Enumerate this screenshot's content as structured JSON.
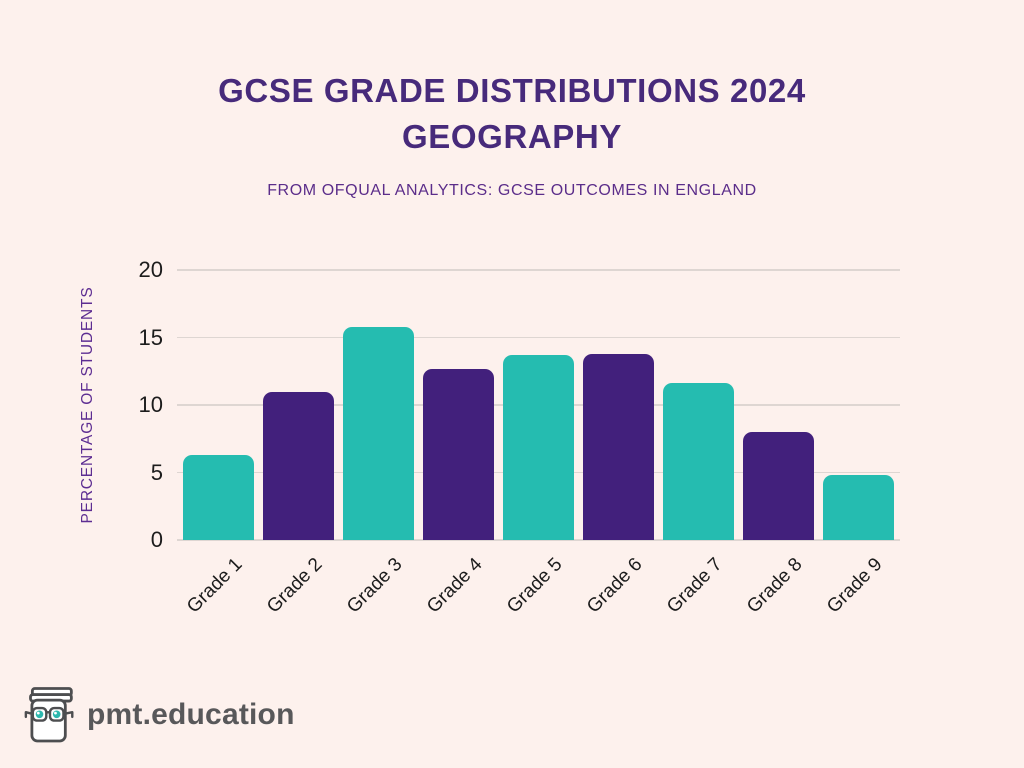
{
  "header": {
    "title_line1": "GCSE GRADE DISTRIBUTIONS 2024",
    "title_line2": "GEOGRAPHY",
    "subtitle": "FROM OFQUAL ANALYTICS: GCSE OUTCOMES IN ENGLAND"
  },
  "chart_data": {
    "type": "bar",
    "title": "GCSE GRADE DISTRIBUTIONS 2024 GEOGRAPHY",
    "subtitle": "FROM OFQUAL ANALYTICS: GCSE OUTCOMES IN ENGLAND",
    "categories": [
      "Grade 1",
      "Grade 2",
      "Grade 3",
      "Grade 4",
      "Grade 5",
      "Grade 6",
      "Grade 7",
      "Grade 8",
      "Grade 9"
    ],
    "values": [
      6.3,
      11.0,
      15.8,
      12.7,
      13.7,
      13.8,
      11.6,
      8.0,
      4.8
    ],
    "bar_colors": [
      "#25bcb0",
      "#42207c",
      "#25bcb0",
      "#42207c",
      "#25bcb0",
      "#42207c",
      "#25bcb0",
      "#42207c",
      "#25bcb0"
    ],
    "xlabel": "",
    "ylabel": "PERCENTAGE OF STUDENTS",
    "ylim": [
      0,
      20
    ],
    "yticks": [
      0,
      5,
      10,
      15,
      20
    ],
    "grid": true,
    "legend": "none"
  },
  "logo": {
    "text": "pmt.education"
  },
  "colors": {
    "background": "#fdf1ed",
    "title": "#472a7b",
    "subtitle": "#5b2d8a",
    "axis_label": "#5d2d92",
    "tick": "#1c1c1c",
    "gridline": "#ded6d2",
    "logo_text": "#58585a",
    "teal": "#25bcb0",
    "purple": "#42207c"
  }
}
